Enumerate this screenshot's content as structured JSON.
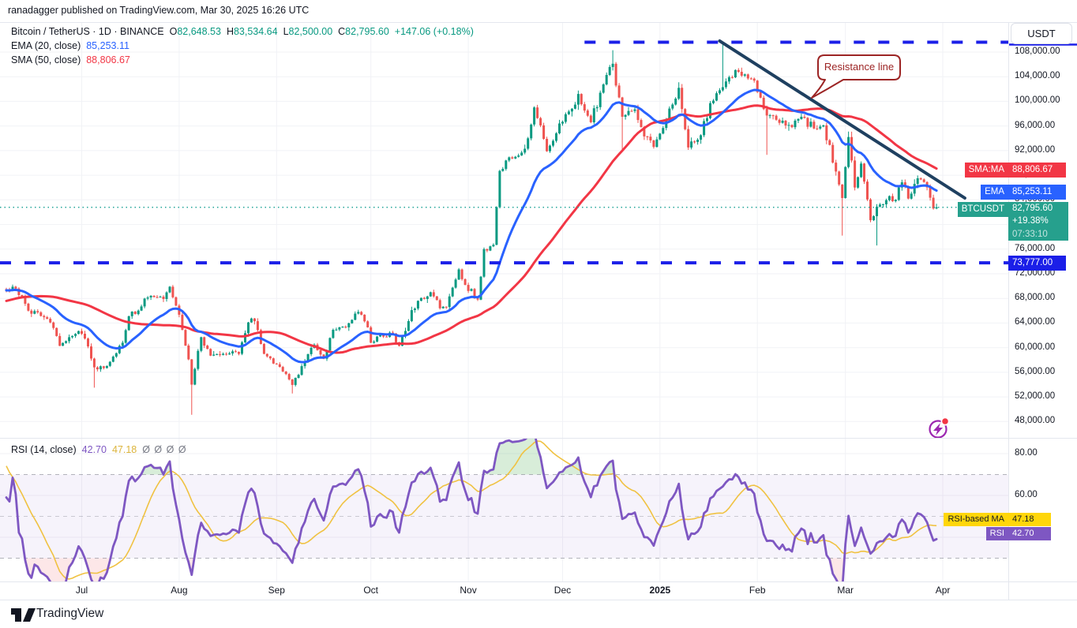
{
  "app": {
    "header_line": "ranadagger published on TradingView.com, Mar 30, 2025 16:26 UTC"
  },
  "legend": {
    "symbol_line": "Bitcoin / TetherUS · 1D · BINANCE",
    "o_label": "O",
    "o_value": "82,648.53",
    "h_label": "H",
    "h_value": "83,534.64",
    "l_label": "L",
    "l_value": "82,500.00",
    "c_label": "C",
    "c_value": "82,795.60",
    "change": "+147.06 (+0.18%)",
    "ema_name": "EMA (20, close)",
    "ema_value": "85,253.11",
    "sma_name": "SMA (50, close)",
    "sma_value": "88,806.67"
  },
  "rsi_legend": {
    "name": "RSI (14, close)",
    "value": "42.70",
    "ma_value": "47.18",
    "empty_series": "Ø  Ø  Ø  Ø"
  },
  "axis": {
    "currency_button": "USDT",
    "tags": {
      "sma_name": "SMA:MA",
      "sma_value": "88,806.67",
      "ema_name": "EMA",
      "ema_value": "85,253.11",
      "symbol": "BTCUSDT",
      "price": "82,795.60",
      "change_pct": "+19.38%",
      "countdown": "07:33:10",
      "level": "73,777.00",
      "rsi_ma_name": "RSI-based MA",
      "rsi_ma_value": "47.18",
      "rsi_name": "RSI",
      "rsi_value": "42.70"
    }
  },
  "annotations": {
    "resistance_label": "Resistance line"
  },
  "footer": {
    "brand": "TradingView"
  },
  "colors": {
    "up": "#089981",
    "down": "#ef5350",
    "ema": "#2962ff",
    "sma": "#f23645",
    "level_blue": "#1b1fe8",
    "trend_navy": "#1f4060",
    "price_line": "#26a69a",
    "rsi": "#7e57c2",
    "rsi_ma_line": "#f0c242",
    "callout": "#9c2424",
    "overbought_fill": "#4caf50",
    "oversold_fill": "#f23645",
    "flash_purple": "#9c27b0",
    "alert_red": "#f23645",
    "text": "#131722",
    "muted": "#787b86",
    "grid": "#f1f2f6",
    "border": "#e4e7ee"
  },
  "chart_data": {
    "type": "candlestick",
    "symbol": "BTCUSDT",
    "exchange": "BINANCE",
    "interval": "1D",
    "last_candle": {
      "open": 82648.53,
      "high": 83534.64,
      "low": 82500.0,
      "close": 82795.6,
      "change": 147.06,
      "change_pct": 0.18
    },
    "indicator_values": {
      "ema20": 85253.11,
      "sma50": 88806.67,
      "rsi14": 42.7,
      "rsi_ma14": 47.18
    },
    "price_axis": {
      "ticks": [
        108000,
        104000,
        100000,
        96000,
        92000,
        88000,
        84000,
        80000,
        76000,
        72000,
        68000,
        64000,
        60000,
        56000,
        52000,
        48000
      ]
    },
    "rsi_axis": {
      "ticks": [
        80,
        60,
        40
      ],
      "bands": [
        70,
        50,
        30
      ]
    },
    "levels": {
      "ath_dashed_price": 109600,
      "ath_start_day": 184,
      "support_dashed_price": 73777,
      "last_price": 82795.6
    },
    "resistance_trendline": {
      "from": {
        "day": 227,
        "price": 109800
      },
      "to": {
        "day": 305,
        "price": 84300
      }
    },
    "time_axis": {
      "months": [
        {
          "label": "Jul",
          "day": 24
        },
        {
          "label": "Aug",
          "day": 55
        },
        {
          "label": "Sep",
          "day": 86
        },
        {
          "label": "Oct",
          "day": 116
        },
        {
          "label": "Nov",
          "day": 147
        },
        {
          "label": "Dec",
          "day": 177
        },
        {
          "label": "2025",
          "day": 208,
          "bold": true
        },
        {
          "label": "Feb",
          "day": 239
        },
        {
          "label": "Mar",
          "day": 267
        },
        {
          "label": "Apr",
          "day": 298
        }
      ]
    },
    "day_range": [
      -50,
      296
    ],
    "pre_anchors": [
      [
        -50,
        63000
      ],
      [
        -40,
        64500
      ],
      [
        -30,
        67800
      ],
      [
        -20,
        69000
      ],
      [
        -12,
        70500
      ],
      [
        -6,
        69300
      ],
      [
        -1,
        69500
      ]
    ],
    "price_anchors": [
      [
        0,
        69300
      ],
      [
        3,
        69600
      ],
      [
        5,
        68300
      ],
      [
        7,
        66000
      ],
      [
        11,
        65150
      ],
      [
        14,
        64100
      ],
      [
        17,
        60300
      ],
      [
        20,
        61700
      ],
      [
        23,
        62700
      ],
      [
        26,
        60200
      ],
      [
        28,
        56800
      ],
      [
        31,
        56700
      ],
      [
        33,
        57700
      ],
      [
        37,
        60800
      ],
      [
        39,
        65100
      ],
      [
        43,
        66700
      ],
      [
        45,
        68150
      ],
      [
        50,
        67900
      ],
      [
        52,
        69900
      ],
      [
        55,
        65350
      ],
      [
        58,
        58100
      ],
      [
        59,
        54000
      ],
      [
        62,
        61700
      ],
      [
        65,
        58700
      ],
      [
        70,
        58900
      ],
      [
        74,
        59000
      ],
      [
        77,
        64100
      ],
      [
        79,
        64300
      ],
      [
        82,
        59000
      ],
      [
        86,
        57300
      ],
      [
        91,
        53950
      ],
      [
        94,
        57000
      ],
      [
        98,
        60500
      ],
      [
        101,
        58200
      ],
      [
        104,
        62900
      ],
      [
        108,
        63300
      ],
      [
        112,
        65800
      ],
      [
        115,
        63300
      ],
      [
        116,
        60800
      ],
      [
        119,
        62100
      ],
      [
        123,
        62300
      ],
      [
        125,
        60300
      ],
      [
        129,
        66100
      ],
      [
        131,
        67600
      ],
      [
        135,
        69000
      ],
      [
        138,
        66400
      ],
      [
        140,
        66600
      ],
      [
        144,
        72700
      ],
      [
        146,
        70200
      ],
      [
        150,
        67800
      ],
      [
        152,
        76000
      ],
      [
        155,
        76700
      ],
      [
        157,
        88700
      ],
      [
        159,
        90400
      ],
      [
        162,
        91000
      ],
      [
        165,
        92300
      ],
      [
        168,
        99000
      ],
      [
        172,
        91900
      ],
      [
        176,
        96400
      ],
      [
        180,
        98800
      ],
      [
        182,
        101200
      ],
      [
        186,
        96600
      ],
      [
        189,
        101400
      ],
      [
        193,
        106100
      ],
      [
        196,
        97500
      ],
      [
        200,
        98700
      ],
      [
        203,
        94300
      ],
      [
        206,
        92600
      ],
      [
        210,
        96900
      ],
      [
        214,
        102200
      ],
      [
        217,
        92500
      ],
      [
        221,
        94500
      ],
      [
        224,
        99700
      ],
      [
        228,
        102300
      ],
      [
        231,
        103900
      ],
      [
        233,
        104800
      ],
      [
        237,
        103700
      ],
      [
        240,
        100600
      ],
      [
        242,
        97700
      ],
      [
        246,
        96500
      ],
      [
        250,
        95800
      ],
      [
        253,
        97500
      ],
      [
        257,
        95600
      ],
      [
        260,
        96100
      ],
      [
        264,
        88600
      ],
      [
        266,
        84300
      ],
      [
        268,
        94200
      ],
      [
        270,
        86000
      ],
      [
        272,
        89900
      ],
      [
        275,
        80700
      ],
      [
        277,
        82900
      ],
      [
        280,
        83950
      ],
      [
        283,
        84000
      ],
      [
        285,
        86850
      ],
      [
        287,
        84200
      ],
      [
        290,
        87500
      ],
      [
        292,
        86900
      ],
      [
        294,
        84350
      ],
      [
        295,
        82600
      ],
      [
        296,
        82795.6
      ]
    ],
    "wick_overrides": [
      [
        28,
        "low",
        53500
      ],
      [
        59,
        "low",
        49100
      ],
      [
        91,
        "low",
        52550
      ],
      [
        193,
        "high",
        108300
      ],
      [
        196,
        "low",
        92200
      ],
      [
        228,
        "high",
        109350
      ],
      [
        242,
        "low",
        91300
      ],
      [
        266,
        "low",
        78200
      ],
      [
        268,
        "high",
        95100
      ],
      [
        277,
        "low",
        76600
      ]
    ],
    "indicators": {
      "ema_period": 20,
      "sma_period": 50,
      "rsi_period": 14,
      "rsi_ma_period": 14
    }
  }
}
